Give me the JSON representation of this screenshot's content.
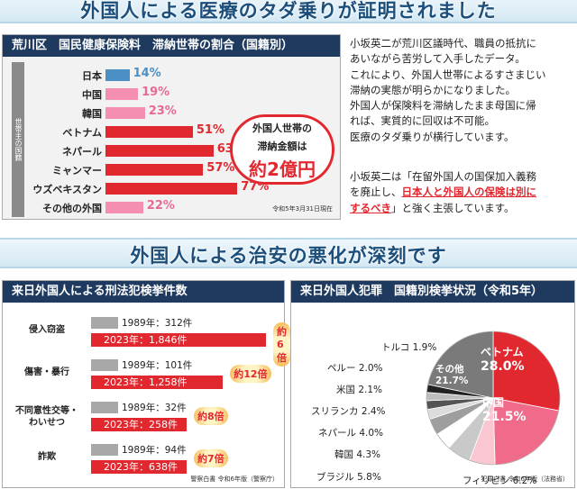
{
  "banner_top": "外国人による医療のタダ乗りが証明されました",
  "banner_mid": "外国人による治安の悪化が深刻です",
  "panel1": {
    "title": "荒川区　国民健康保険料　滞納世帯の割合（国籍別）",
    "vlabel": "世帯主の国籍",
    "callout_l1": "外国人世帯の",
    "callout_l2": "滞納金額は",
    "callout_big": "約2億円",
    "note": "令和5年3月31日現在"
  },
  "text1": [
    "小坂英二が荒川区議時代、職員の抵抗に",
    "あいながら苦労して入手したデータ。",
    "これにより、外国人世帯によるすさまじい",
    "滞納の実態が明らかになりました。",
    "外国人が保険料を滞納したまま母国に帰",
    "れば、実質的に回収は不可能。",
    "医療のタダ乗りが横行しています。"
  ],
  "text2": {
    "a": "小坂英二は「在留外国人の国保加入義務",
    "b": "を廃止し、",
    "c": "日本人と外国人の保険は別に",
    "d": "するべき",
    "e": "」と強く主張しています。"
  },
  "panel2": {
    "title": "来日外国人による刑法犯検挙件数",
    "note": "警察白書 令和6年版（警察庁）"
  },
  "panel3": {
    "title": "来日外国人犯罪　国籍別検挙状況（令和5年）",
    "note": "犯罪白書 令和6年版（法務省）"
  },
  "chart_data": [
    {
      "type": "bar",
      "title": "荒川区　国民健康保険料　滞納世帯の割合（国籍別）",
      "categories": [
        "日本",
        "中国",
        "韓国",
        "ベトナム",
        "ネパール",
        "ミャンマー",
        "ウズベキスタン",
        "その他の外国"
      ],
      "values": [
        14,
        19,
        23,
        51,
        63,
        57,
        77,
        22
      ],
      "labels": [
        "14%",
        "19%",
        "23%",
        "51%",
        "63%",
        "57%",
        "77%",
        "22%"
      ],
      "colors": [
        "#4a90c4",
        "#f48fb1",
        "#f48fb1",
        "#e2282f",
        "#e2282f",
        "#e2282f",
        "#e2282f",
        "#f48fb1"
      ]
    },
    {
      "type": "bar",
      "title": "来日外国人による刑法犯検挙件数",
      "categories": [
        "侵入窃盗",
        "傷害・暴行",
        "不同意性交等・わいせつ",
        "詐欺"
      ],
      "cat_lines": [
        [
          "侵入窃盗"
        ],
        [
          "傷害・暴行"
        ],
        [
          "不同意性交等・",
          "わいせつ"
        ],
        [
          "詐欺"
        ]
      ],
      "series": [
        {
          "name": "1989年",
          "values": [
            312,
            101,
            32,
            94
          ],
          "labels": [
            "1989年：312件",
            "1989年：101件",
            "1989年：32件",
            "1989年：94件"
          ]
        },
        {
          "name": "2023年",
          "values": [
            1846,
            1258,
            258,
            638
          ],
          "labels": [
            "2023年：1,846件",
            "2023年：1,258件",
            "2023年：258件",
            "2023年：638件"
          ]
        }
      ],
      "multipliers": [
        "約6倍",
        "約12倍",
        "約8倍",
        "約7倍"
      ]
    },
    {
      "type": "pie",
      "title": "来日外国人犯罪　国籍別検挙状況（令和5年）",
      "slices": [
        {
          "label": "ベトナム",
          "value": 28.0,
          "text": "28.0%",
          "color": "#e2282f"
        },
        {
          "label": "中国",
          "value": 21.5,
          "text": "21.5%",
          "color": "#f06a8a"
        },
        {
          "label": "フィリピン",
          "value": 6.2,
          "text": "フィリピン 6.2%",
          "color": "#f9c6d2"
        },
        {
          "label": "ブラジル",
          "value": 5.8,
          "text": "ブラジル 5.8%",
          "color": "#c9c9c9"
        },
        {
          "label": "韓国",
          "value": 4.3,
          "text": "韓国 4.3%",
          "color": "#ffffff"
        },
        {
          "label": "ネパール",
          "value": 4.0,
          "text": "ネパール 4.0%",
          "color": "#9e9e9e"
        },
        {
          "label": "スリランカ",
          "value": 2.4,
          "text": "スリランカ 2.4%",
          "color": "#dcdcdc"
        },
        {
          "label": "米国",
          "value": 2.1,
          "text": "米国 2.1%",
          "color": "#555555"
        },
        {
          "label": "ペルー",
          "value": 2.0,
          "text": "ペルー 2.0%",
          "color": "#bdbdbd"
        },
        {
          "label": "トルコ",
          "value": 1.9,
          "text": "トルコ 1.9%",
          "color": "#222222"
        },
        {
          "label": "その他",
          "value": 21.7,
          "text": "21.7%",
          "color": "#7a7a7a"
        }
      ]
    }
  ]
}
